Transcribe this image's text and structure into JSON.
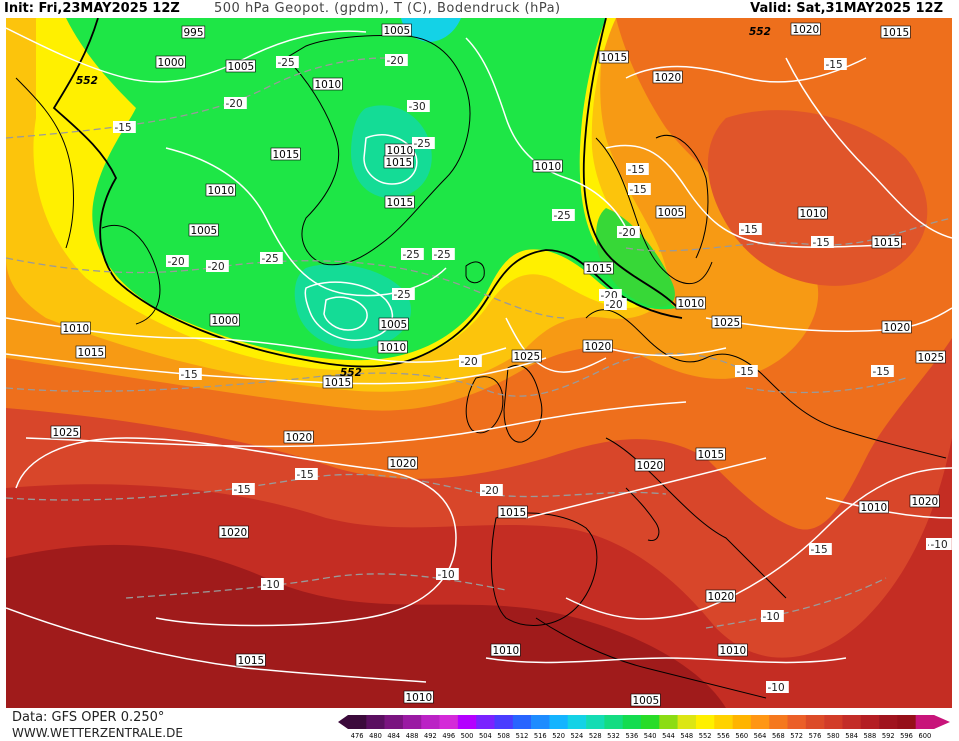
{
  "header": {
    "init": "Init: Fri,23MAY2025 12Z",
    "title": "500 hPa Geopot. (gpdm), T (C), Bodendruck (hPa)",
    "valid": "Valid: Sat,31MAY2025 12Z"
  },
  "footer": {
    "data_source": "Data: GFS OPER 0.250°",
    "website": "WWW.WETTERZENTRALE.DE"
  },
  "colorbar": {
    "values": [
      "476",
      "480",
      "484",
      "488",
      "492",
      "496",
      "500",
      "504",
      "508",
      "512",
      "516",
      "520",
      "524",
      "528",
      "532",
      "536",
      "540",
      "544",
      "548",
      "552",
      "556",
      "560",
      "564",
      "568",
      "572",
      "576",
      "580",
      "584",
      "588",
      "592",
      "596",
      "600"
    ],
    "colors": [
      "#3b0a3b",
      "#5a0f60",
      "#7a1480",
      "#9a1aa3",
      "#bb22c5",
      "#d42ad8",
      "#b400ff",
      "#7a22ff",
      "#4a3cff",
      "#2864ff",
      "#1e8cff",
      "#14b4ff",
      "#14d2e6",
      "#14dcb4",
      "#14dc82",
      "#14dc50",
      "#28dc28",
      "#8cdc14",
      "#dce614",
      "#fff000",
      "#ffd200",
      "#ffb400",
      "#ff9614",
      "#f5781e",
      "#eb5f28",
      "#dc4b28",
      "#d23c28",
      "#c32d28",
      "#b41e23",
      "#a0141e",
      "#960f19",
      "#c8147a"
    ]
  },
  "map": {
    "isobar_labels": [
      "995",
      "1005",
      "1000",
      "1005",
      "1010",
      "1015",
      "1010",
      "1015",
      "1010",
      "1015",
      "1010",
      "1005",
      "1000",
      "1005",
      "1010",
      "1015",
      "1010",
      "1015",
      "1005",
      "1010",
      "1015",
      "1020",
      "1015",
      "1015",
      "1020",
      "1010",
      "1015",
      "1025",
      "1020",
      "1025",
      "1020",
      "1025",
      "1025",
      "1020",
      "1020",
      "1020",
      "1015",
      "1020",
      "1015",
      "1015",
      "1010",
      "1020",
      "1010",
      "1020",
      "1010",
      "1010",
      "1005"
    ],
    "temperature_labels": [
      "-25",
      "-20",
      "-30",
      "-25",
      "-15",
      "-20",
      "-25",
      "-25",
      "-25",
      "-25",
      "-20",
      "-20",
      "-15",
      "-25",
      "-20",
      "-20",
      "-15",
      "-15",
      "-20",
      "-15",
      "-15",
      "-15",
      "-15",
      "-15",
      "-15",
      "-10",
      "-10",
      "-10",
      "-10",
      "-10",
      "-15",
      "-15",
      "-10",
      "-20",
      "-20"
    ],
    "geopotential_labels": [
      "552",
      "552",
      "552"
    ],
    "colors": {
      "dark_red": "#a01b1b",
      "red": "#c42d23",
      "red_orange": "#d8462a",
      "orange": "#ee6f1c",
      "light_orange": "#f79a14",
      "amber": "#fcc40c",
      "yellow": "#fff000",
      "green": "#1ee646",
      "bright_green": "#37d837",
      "teal": "#14dc96",
      "cyan": "#14d2e6",
      "coast": "#000000",
      "isobar": "#ffffff",
      "isotherm": "#9a9a9a"
    }
  }
}
